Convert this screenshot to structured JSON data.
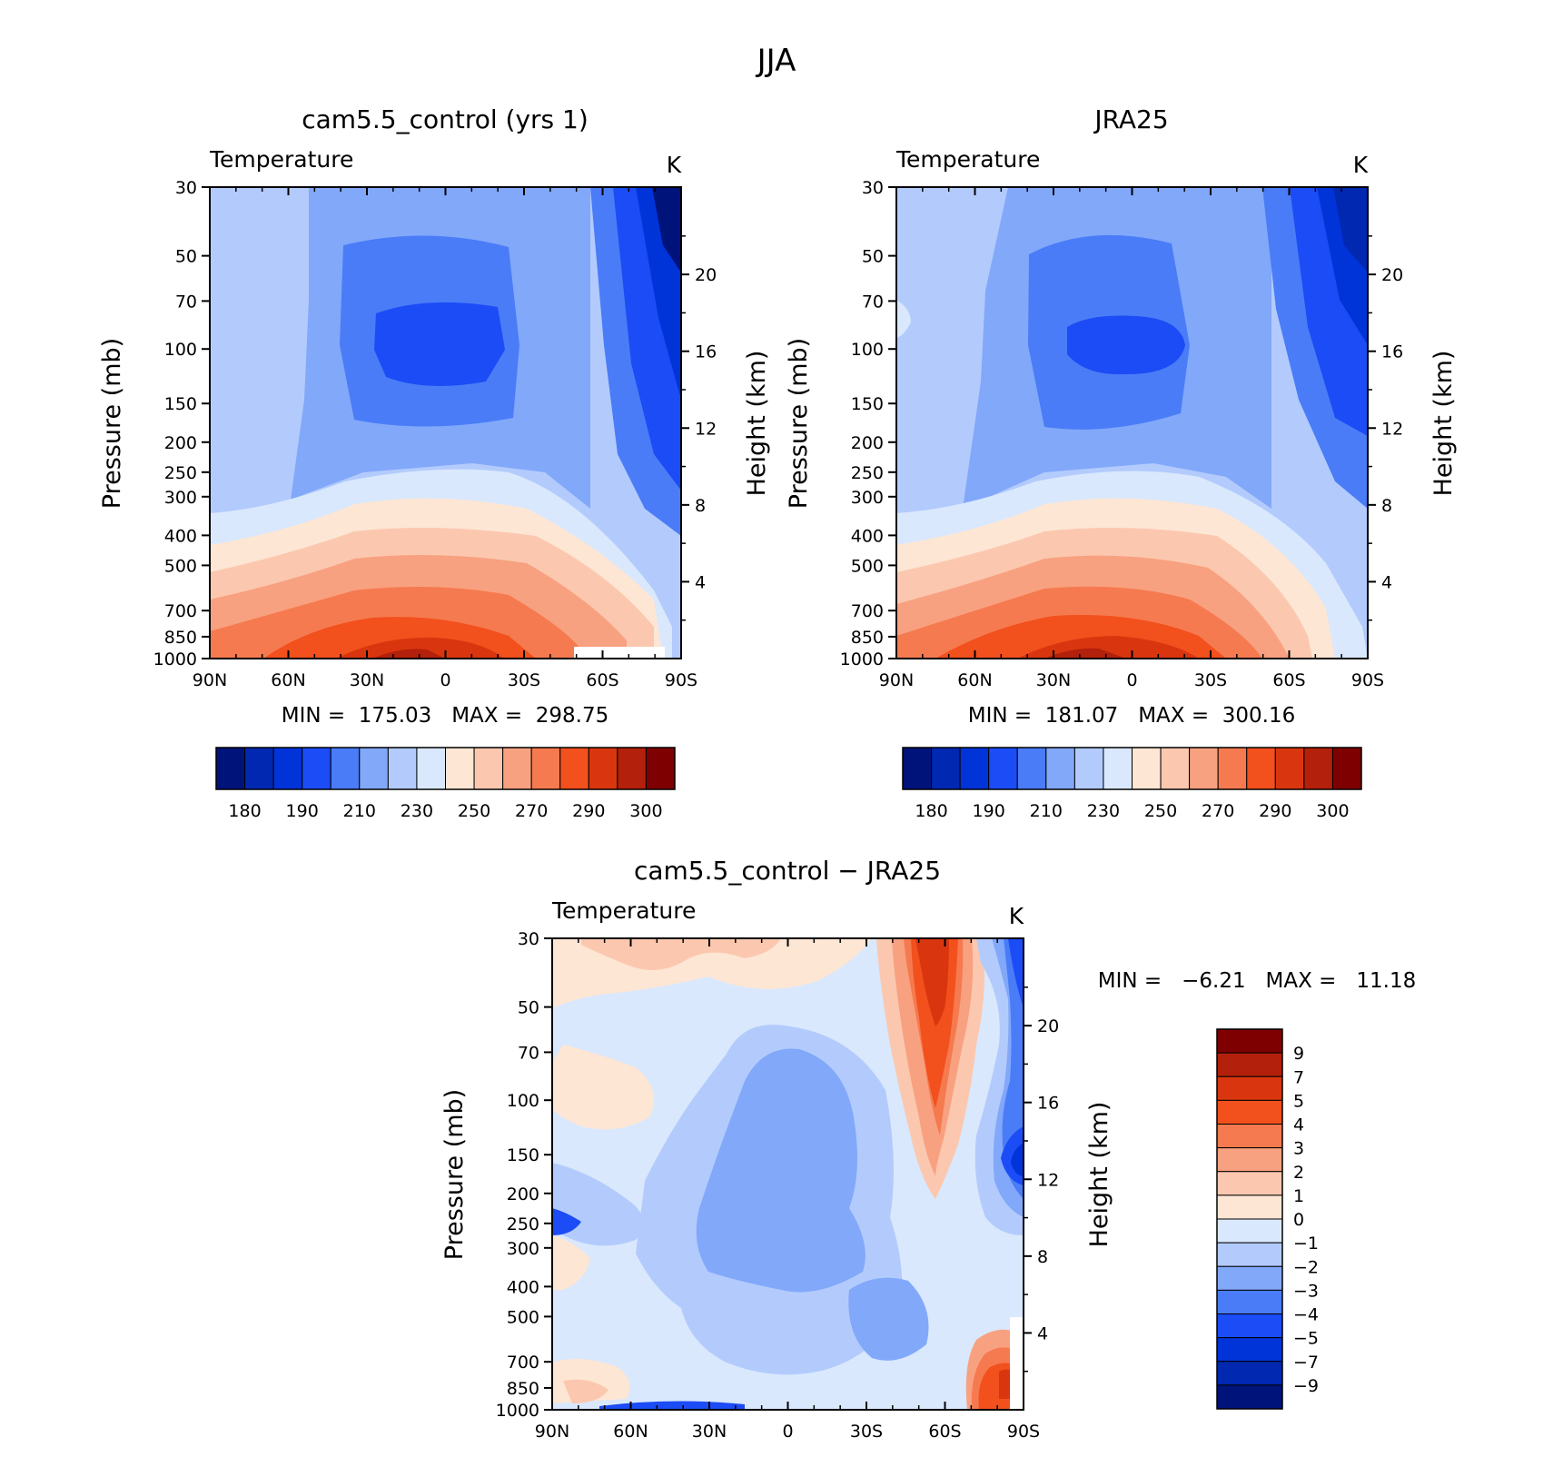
{
  "figure_title": "JJA",
  "chart_data": [
    {
      "type": "heatmap",
      "title": "cam5.5_control (yrs 1)",
      "left_title": "Temperature",
      "units": "K",
      "ylabel": "Pressure (mb)",
      "ylabel_right": "Height (km)",
      "x_ticks": [
        "90N",
        "60N",
        "30N",
        "0",
        "30S",
        "60S",
        "90S"
      ],
      "y_ticks": [
        "30",
        "50",
        "70",
        "100",
        "150",
        "200",
        "250",
        "300",
        "400",
        "500",
        "700",
        "850",
        "1000"
      ],
      "y_right_ticks": [
        "20",
        "16",
        "12",
        "8",
        "4"
      ],
      "ylim": [
        1000,
        30
      ],
      "xlim": [
        90,
        -90
      ],
      "stats_text": "MIN =  175.03   MAX =  298.75",
      "min": 175.03,
      "max": 298.75,
      "colorbar_labels": [
        "180",
        "190",
        "210",
        "230",
        "250",
        "270",
        "290",
        "300"
      ],
      "colorbar_orientation": "horizontal"
    },
    {
      "type": "heatmap",
      "title": "JRA25",
      "left_title": "Temperature",
      "units": "K",
      "ylabel": "Pressure (mb)",
      "ylabel_right": "Height (km)",
      "x_ticks": [
        "90N",
        "60N",
        "30N",
        "0",
        "30S",
        "60S",
        "90S"
      ],
      "y_ticks": [
        "30",
        "50",
        "70",
        "100",
        "150",
        "200",
        "250",
        "300",
        "400",
        "500",
        "700",
        "850",
        "1000"
      ],
      "y_right_ticks": [
        "20",
        "16",
        "12",
        "8",
        "4"
      ],
      "ylim": [
        1000,
        30
      ],
      "xlim": [
        90,
        -90
      ],
      "stats_text": "MIN =  181.07   MAX =  300.16",
      "min": 181.07,
      "max": 300.16,
      "colorbar_labels": [
        "180",
        "190",
        "210",
        "230",
        "250",
        "270",
        "290",
        "300"
      ],
      "colorbar_orientation": "horizontal"
    },
    {
      "type": "heatmap",
      "title": "cam5.5_control − JRA25",
      "left_title": "Temperature",
      "units": "K",
      "ylabel": "Pressure (mb)",
      "ylabel_right": "Height (km)",
      "x_ticks": [
        "90N",
        "60N",
        "30N",
        "0",
        "30S",
        "60S",
        "90S"
      ],
      "y_ticks": [
        "30",
        "50",
        "70",
        "100",
        "150",
        "200",
        "250",
        "300",
        "400",
        "500",
        "700",
        "850",
        "1000"
      ],
      "y_right_ticks": [
        "20",
        "16",
        "12",
        "8",
        "4"
      ],
      "ylim": [
        1000,
        30
      ],
      "xlim": [
        90,
        -90
      ],
      "stats_text": "MIN =   −6.21   MAX =   11.18",
      "min": -6.21,
      "max": 11.18,
      "colorbar_labels": [
        "9",
        "7",
        "5",
        "4",
        "3",
        "2",
        "1",
        "0",
        "−1",
        "−2",
        "−3",
        "−4",
        "−5",
        "−7",
        "−9"
      ],
      "colorbar_orientation": "vertical"
    }
  ],
  "colors": {
    "abs_palette": [
      "#00137a",
      "#0028b0",
      "#0034d8",
      "#1b4cf5",
      "#4a7cf7",
      "#82a8fa",
      "#b3cbfc",
      "#d9e8fd",
      "#fde6d4",
      "#fbc8af",
      "#f8a180",
      "#f67a4f",
      "#f2501d",
      "#d9360f",
      "#b3200b",
      "#7f0000"
    ],
    "diff_palette": [
      "#7f0000",
      "#b3200b",
      "#d9360f",
      "#f2501d",
      "#f67a4f",
      "#f8a180",
      "#fbc8af",
      "#fde6d4",
      "#d9e8fd",
      "#b3cbfc",
      "#82a8fa",
      "#4a7cf7",
      "#1b4cf5",
      "#0034d8",
      "#0028b0",
      "#00137a"
    ]
  }
}
